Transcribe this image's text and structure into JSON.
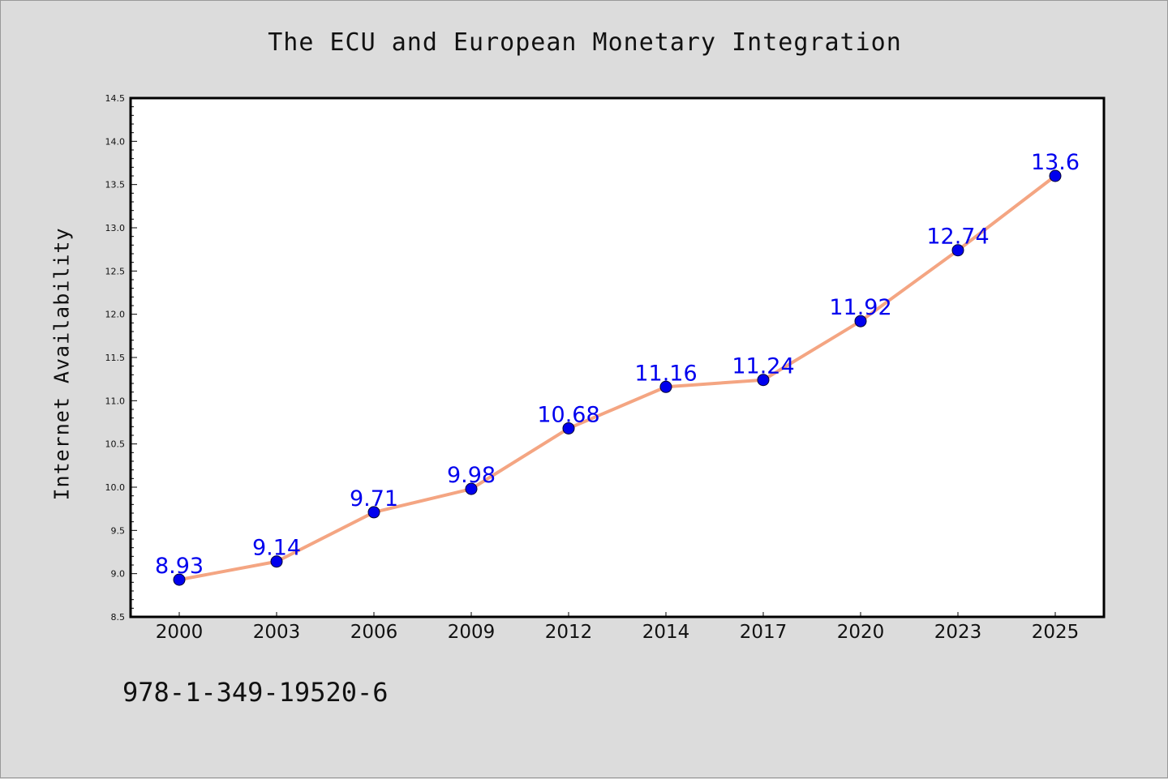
{
  "chart_data": {
    "type": "line",
    "title": "The ECU and European Monetary Integration",
    "xlabel": "",
    "ylabel": "Internet Availability",
    "categories": [
      "2000",
      "2003",
      "2006",
      "2009",
      "2012",
      "2014",
      "2017",
      "2020",
      "2023",
      "2025"
    ],
    "series": [
      {
        "values": [
          8.93,
          9.14,
          9.71,
          9.98,
          10.68,
          11.16,
          11.24,
          11.92,
          12.74,
          13.6
        ],
        "labels": [
          "8.93",
          "9.14",
          "9.71",
          "9.98",
          "10.68",
          "11.16",
          "11.24",
          "11.92",
          "12.74",
          "13.6"
        ],
        "line_color": "#f4a582",
        "marker_color": "#0000ee"
      }
    ],
    "ylim": [
      8.5,
      14.5
    ],
    "yticks": [
      "8.5",
      "9.0",
      "9.5",
      "10.0",
      "10.5",
      "11.0",
      "11.5",
      "12.0",
      "12.5",
      "13.0",
      "13.5",
      "14.0",
      "14.5"
    ],
    "grid": false,
    "legend": "none",
    "data_label_color": "#0000ee"
  },
  "annotation": "978-1-349-19520-6",
  "colors": {
    "background": "#dcdcdc",
    "plot_background": "#ffffff",
    "axis": "#000000"
  }
}
